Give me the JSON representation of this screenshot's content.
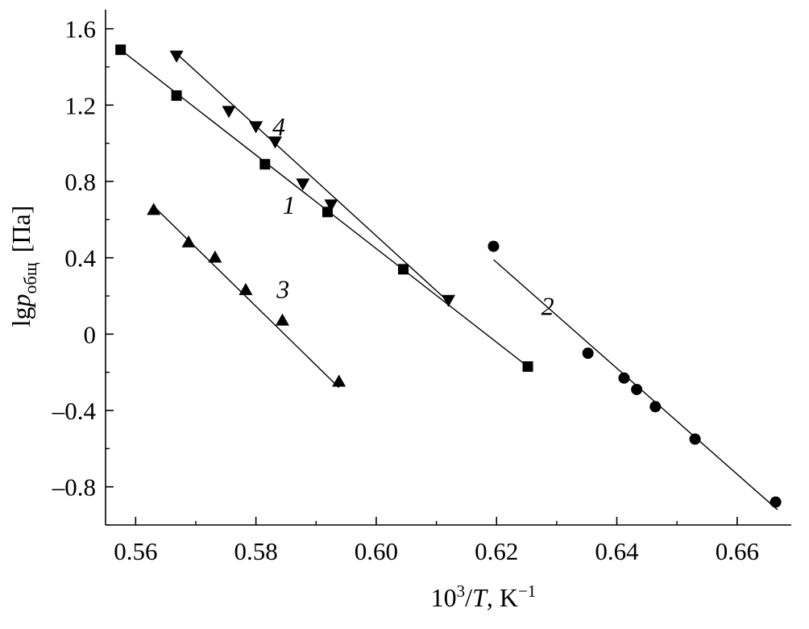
{
  "chart_data": {
    "type": "scatter",
    "xlabel": "10³/T, K⁻¹",
    "ylabel": "lg p общ [Па]",
    "ylabel_parts": {
      "main": "lg",
      "var": "p",
      "sub": "общ",
      "unit": "[Па]"
    },
    "xlabel_parts": {
      "main": "10",
      "sup": "3",
      "slash": "/",
      "var": "T",
      "unit": ", K",
      "unit_sup": "−1"
    },
    "xlim": [
      0.555,
      0.669
    ],
    "ylim": [
      -1.0,
      1.7
    ],
    "x_ticks": [
      0.56,
      0.58,
      0.6,
      0.62,
      0.64,
      0.66
    ],
    "x_tick_labels": [
      "0.56",
      "0.58",
      "0.60",
      "0.62",
      "0.64",
      "0.66"
    ],
    "y_ticks": [
      1.6,
      1.2,
      0.8,
      0.4,
      0,
      -0.4,
      -0.8
    ],
    "y_tick_labels": [
      "1.6",
      "1.2",
      "0.8",
      "0.4",
      "0",
      "–0.4",
      "–0.8"
    ],
    "grid": false,
    "legend": "none",
    "series": [
      {
        "name": "1",
        "marker": "square",
        "x": [
          0.5575,
          0.5668,
          0.5815,
          0.5919,
          0.6045,
          0.6252
        ],
        "y": [
          1.49,
          1.25,
          0.89,
          0.64,
          0.34,
          -0.17
        ],
        "fit": [
          [
            0.5575,
            1.49
          ],
          [
            0.6252,
            -0.17
          ]
        ],
        "label_pos": [
          0.5855,
          0.63
        ]
      },
      {
        "name": "2",
        "marker": "circle",
        "x": [
          0.6195,
          0.6352,
          0.6412,
          0.6433,
          0.6464,
          0.653,
          0.6664
        ],
        "y": [
          0.46,
          -0.1,
          -0.23,
          -0.29,
          -0.38,
          -0.55,
          -0.88
        ],
        "fit": [
          [
            0.6195,
            0.39
          ],
          [
            0.6667,
            -0.92
          ]
        ],
        "label_pos": [
          0.6285,
          0.1
        ]
      },
      {
        "name": "3",
        "marker": "triangle-up",
        "x": [
          0.563,
          0.5688,
          0.5732,
          0.5783,
          0.5844,
          0.5938
        ],
        "y": [
          0.65,
          0.48,
          0.4,
          0.23,
          0.07,
          -0.25
        ],
        "fit": [
          [
            0.563,
            0.67
          ],
          [
            0.5938,
            -0.28
          ]
        ],
        "label_pos": [
          0.5845,
          0.19
        ]
      },
      {
        "name": "4",
        "marker": "triangle-down",
        "x": [
          0.5668,
          0.5755,
          0.58,
          0.5832,
          0.5878,
          0.5925,
          0.612
        ],
        "y": [
          1.46,
          1.17,
          1.09,
          1.01,
          0.79,
          0.68,
          0.18
        ],
        "fit": [
          [
            0.5668,
            1.47
          ],
          [
            0.612,
            0.17
          ]
        ],
        "label_pos": [
          0.5838,
          1.04
        ]
      }
    ]
  }
}
